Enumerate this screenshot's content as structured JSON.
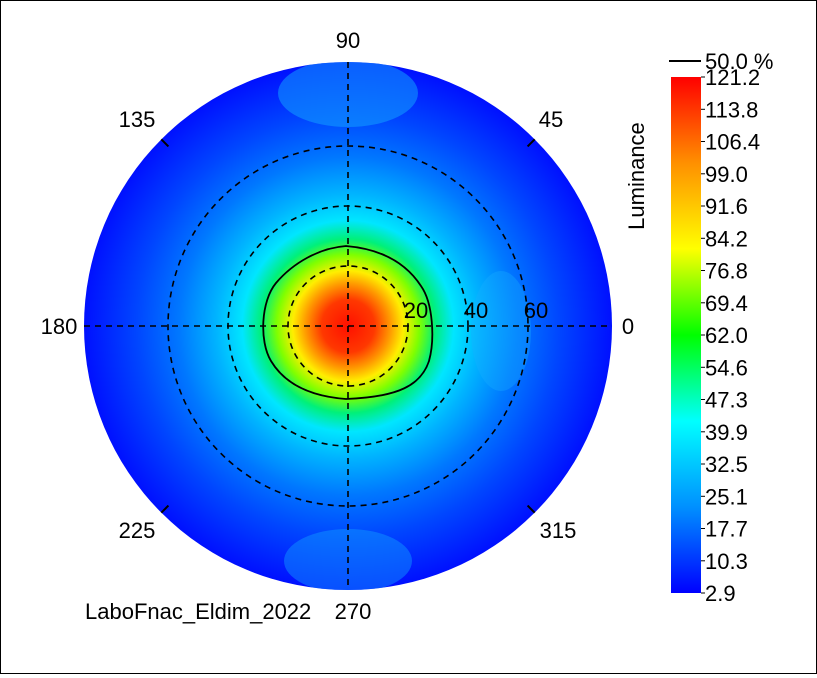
{
  "chart_data": {
    "type": "heatmap",
    "projection": "polar",
    "quantity_label": "Luminance",
    "angle_labels": [
      "0",
      "45",
      "90",
      "135",
      "180",
      "225",
      "270",
      "315"
    ],
    "radial_ticks": [
      20,
      40,
      60
    ],
    "radial_max": 88,
    "grid": true,
    "colorbar": {
      "min": 2.9,
      "max": 121.2,
      "labels": [
        "121.2",
        "113.8",
        "106.4",
        "99.0",
        "91.6",
        "84.2",
        "76.8",
        "69.4",
        "62.0",
        "54.6",
        "47.3",
        "39.9",
        "32.5",
        "25.1",
        "17.7",
        "10.3",
        "2.9"
      ],
      "colors": [
        "#0000ff",
        "#0090ff",
        "#00ffff",
        "#00ff00",
        "#ffff00",
        "#ff9000",
        "#ff0000"
      ]
    },
    "contour": {
      "label": "50.0 %",
      "level": 60.6
    },
    "peak_value": 121.2,
    "footer_text": "LaboFnac_Eldim_2022"
  }
}
